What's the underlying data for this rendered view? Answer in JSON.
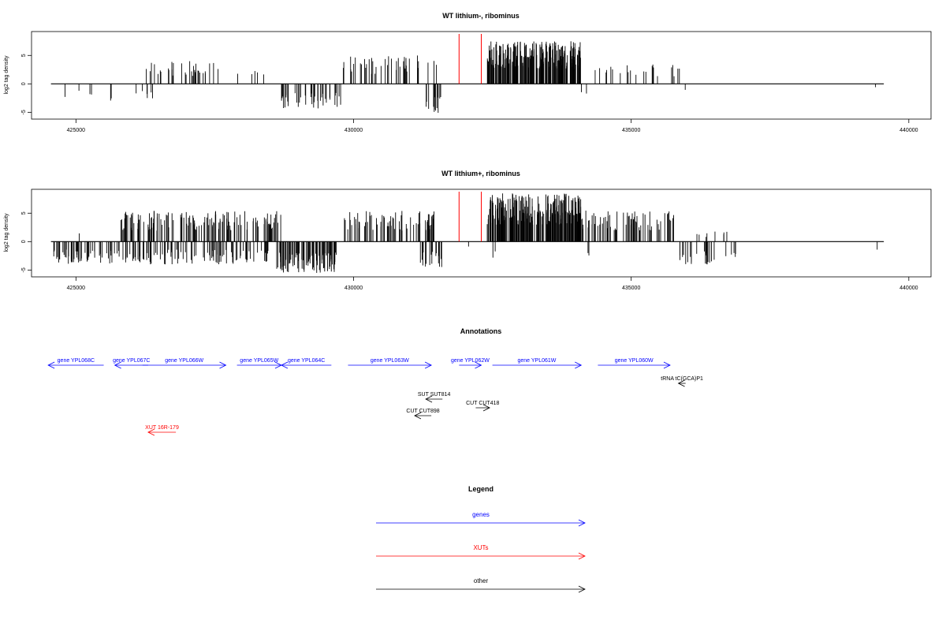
{
  "chart_data": [
    {
      "type": "bar",
      "title": "WT lithium-, ribominus",
      "ylabel": "log2 tag density",
      "xlim": [
        424200,
        440400
      ],
      "ylim": [
        -6.2,
        9.2
      ],
      "x_ticks": [
        425000,
        430000,
        435000,
        440000
      ],
      "y_ticks": [
        -5,
        0,
        5
      ],
      "y_tick_labels": [
        "-5",
        "0",
        "5"
      ],
      "baseline": [
        424550,
        439550
      ],
      "markers": [
        431900,
        432300
      ],
      "marker_color": "#ff0000",
      "pos_regions": [
        {
          "start": 426100,
          "end": 427600,
          "max": 4.0,
          "n": 34
        },
        {
          "start": 427900,
          "end": 428500,
          "max": 2.5,
          "n": 5
        },
        {
          "start": 429800,
          "end": 431500,
          "max": 5.0,
          "n": 42
        },
        {
          "start": 432400,
          "end": 434100,
          "max": 7.5,
          "n": 220
        },
        {
          "start": 434200,
          "end": 435900,
          "max": 3.5,
          "n": 22
        }
      ],
      "neg_regions": [
        {
          "start": 424600,
          "end": 426500,
          "min": -3.0,
          "n": 12
        },
        {
          "start": 428700,
          "end": 429800,
          "min": -4.5,
          "n": 40
        },
        {
          "start": 431300,
          "end": 431600,
          "min": -5.5,
          "n": 14
        },
        {
          "start": 434100,
          "end": 434300,
          "min": -3.5,
          "n": 2
        },
        {
          "start": 435900,
          "end": 436000,
          "min": -3.0,
          "n": 1
        },
        {
          "start": 439400,
          "end": 439450,
          "min": -1.5,
          "n": 1
        }
      ]
    },
    {
      "type": "bar",
      "title": "WT lithium+, ribominus",
      "ylabel": "log2 tag density",
      "xlim": [
        424200,
        440400
      ],
      "ylim": [
        -6.2,
        9.2
      ],
      "x_ticks": [
        425000,
        430000,
        435000,
        440000
      ],
      "y_ticks": [
        -5,
        0,
        5
      ],
      "y_tick_labels": [
        "-5",
        "0",
        "5"
      ],
      "baseline": [
        424550,
        439550
      ],
      "markers": [
        431900,
        432300
      ],
      "marker_color": "#ff0000",
      "pos_regions": [
        {
          "start": 425050,
          "end": 425150,
          "max": 2.0,
          "n": 1
        },
        {
          "start": 425800,
          "end": 428700,
          "max": 5.5,
          "n": 140
        },
        {
          "start": 429800,
          "end": 431500,
          "max": 5.5,
          "n": 75
        },
        {
          "start": 432400,
          "end": 434100,
          "max": 8.5,
          "n": 240
        },
        {
          "start": 434100,
          "end": 435800,
          "max": 5.5,
          "n": 70
        },
        {
          "start": 436000,
          "end": 436800,
          "max": 2.0,
          "n": 8
        }
      ],
      "neg_regions": [
        {
          "start": 424600,
          "end": 428500,
          "min": -4.0,
          "n": 150
        },
        {
          "start": 428600,
          "end": 429700,
          "min": -5.5,
          "n": 90
        },
        {
          "start": 431200,
          "end": 431600,
          "min": -4.5,
          "n": 18
        },
        {
          "start": 432000,
          "end": 432100,
          "min": -1.0,
          "n": 1
        },
        {
          "start": 432400,
          "end": 432600,
          "min": -3.0,
          "n": 2
        },
        {
          "start": 434200,
          "end": 434300,
          "min": -2.5,
          "n": 2
        },
        {
          "start": 435800,
          "end": 436900,
          "min": -4.0,
          "n": 25
        },
        {
          "start": 439400,
          "end": 439450,
          "min": -4.0,
          "n": 1
        }
      ]
    }
  ],
  "annotations": {
    "title": "Annotations",
    "blue": "#0000ff",
    "red": "#ff0000",
    "black": "#000000",
    "features": [
      {
        "label": "gene YPL068C",
        "start": 424500,
        "end": 425500,
        "strand": "-",
        "row": 0,
        "kind": "gene"
      },
      {
        "label": "gene YPL067C",
        "start": 425700,
        "end": 426300,
        "strand": "-",
        "row": 0,
        "kind": "gene"
      },
      {
        "label": "gene YPL066W",
        "start": 426200,
        "end": 427700,
        "strand": "+",
        "row": 0,
        "kind": "gene"
      },
      {
        "label": "gene YPL065W",
        "start": 427900,
        "end": 428700,
        "strand": "+",
        "row": 0,
        "kind": "gene"
      },
      {
        "label": "gene YPL064C",
        "start": 428700,
        "end": 429600,
        "strand": "-",
        "row": 0,
        "kind": "gene"
      },
      {
        "label": "gene YPL063W",
        "start": 429900,
        "end": 431400,
        "strand": "+",
        "row": 0,
        "kind": "gene"
      },
      {
        "label": "gene YPL062W",
        "start": 431900,
        "end": 432300,
        "strand": "+",
        "row": 0,
        "kind": "gene"
      },
      {
        "label": "gene YPL061W",
        "start": 432500,
        "end": 434100,
        "strand": "+",
        "row": 0,
        "kind": "gene"
      },
      {
        "label": "gene YPL060W",
        "start": 434400,
        "end": 435700,
        "strand": "+",
        "row": 0,
        "kind": "gene"
      },
      {
        "label": "tRNA tC(GCA)P1",
        "start": 435850,
        "end": 435980,
        "strand": "-",
        "row": 1,
        "kind": "other"
      },
      {
        "label": "SUT SUT814",
        "start": 431300,
        "end": 431600,
        "strand": "-",
        "row": 2,
        "kind": "other"
      },
      {
        "label": "CUT CUT418",
        "start": 432200,
        "end": 432450,
        "strand": "+",
        "row": 3,
        "kind": "other"
      },
      {
        "label": "CUT CUT898",
        "start": 431100,
        "end": 431400,
        "strand": "-",
        "row": 4,
        "kind": "other"
      },
      {
        "label": "XUT 16R-179",
        "start": 426300,
        "end": 426800,
        "strand": "-",
        "row": 5,
        "kind": "xut"
      }
    ]
  },
  "legend": {
    "title": "Legend",
    "items": [
      {
        "label": "genes",
        "color": "#0000ff"
      },
      {
        "label": "XUTs",
        "color": "#ff0000"
      },
      {
        "label": "other",
        "color": "#000000"
      }
    ]
  }
}
